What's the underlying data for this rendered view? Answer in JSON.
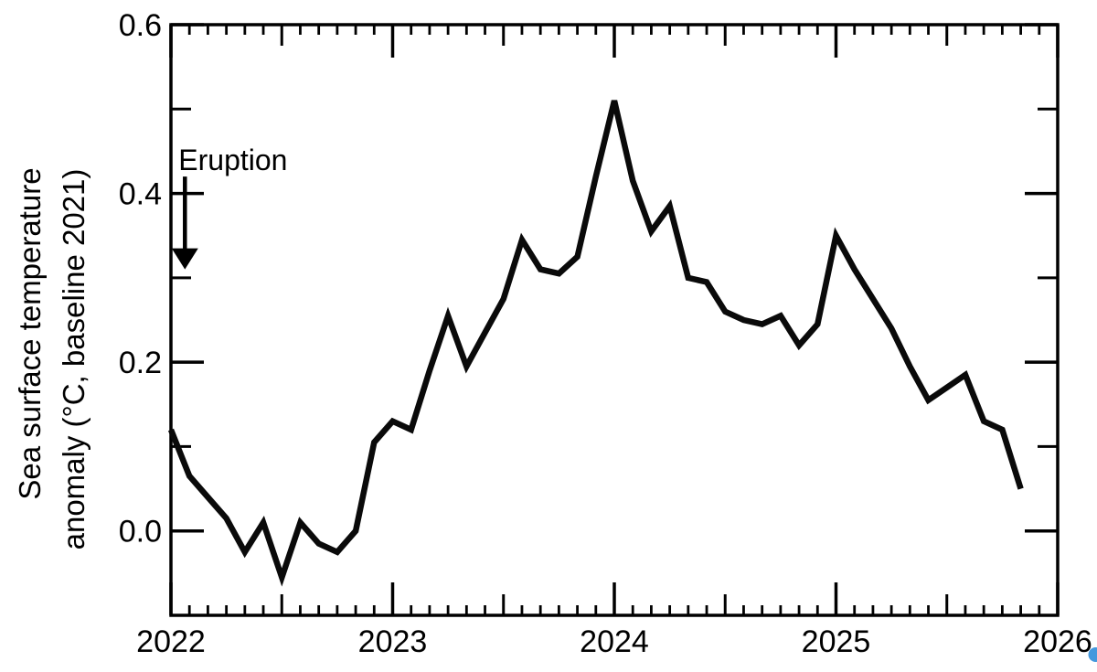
{
  "colors": {
    "line": "#0a0a0a",
    "axis": "#000000",
    "text": "#000000",
    "blue_dot": "#4498dd"
  },
  "chart_data": {
    "type": "line",
    "title": "",
    "ylabel_line1": "Sea surface temperature",
    "ylabel_line2": "anomaly (°C, baseline 2021)",
    "xlabel": "",
    "xlim": [
      2022,
      2026
    ],
    "ylim": [
      -0.1,
      0.6
    ],
    "grid": false,
    "legend": false,
    "xticks_major": [
      2022,
      2023,
      2024,
      2025,
      2026
    ],
    "xticklabels": [
      "2022",
      "2023",
      "2024",
      "2025",
      "2026"
    ],
    "xticks_minor_interval": "monthly",
    "yticks_major": [
      0.0,
      0.2,
      0.4,
      0.6
    ],
    "yticklabels": [
      "0.0",
      "0.2",
      "0.4",
      "0.6"
    ],
    "yticks_minor": [
      0.1,
      0.3,
      0.5
    ],
    "series": [
      {
        "start_month": "2022-01",
        "interval": "monthly",
        "values": [
          0.12,
          0.065,
          0.04,
          0.015,
          -0.025,
          0.01,
          -0.055,
          0.01,
          -0.015,
          -0.025,
          0.0,
          0.105,
          0.13,
          0.12,
          0.19,
          0.255,
          0.195,
          0.235,
          0.275,
          0.345,
          0.31,
          0.305,
          0.325,
          0.42,
          0.51,
          0.415,
          0.355,
          0.385,
          0.3,
          0.295,
          0.26,
          0.25,
          0.245,
          0.255,
          0.22,
          0.245,
          0.35,
          0.31,
          0.275,
          0.24,
          0.195,
          0.155,
          0.17,
          0.185,
          0.13,
          0.12,
          0.05
        ]
      }
    ],
    "annotation": {
      "label": "Eruption",
      "x": 2022.063,
      "arrow_top": 0.42,
      "arrow_tip": 0.31
    }
  }
}
